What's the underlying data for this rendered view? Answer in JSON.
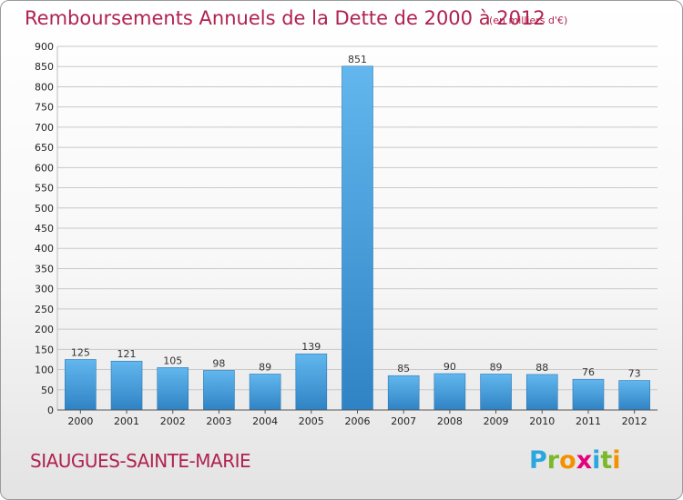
{
  "title": "Remboursements Annuels de la Dette de 2000 à 2012",
  "unit": "(en milliers d'€)",
  "location": "SIAUGUES-SAINTE-MARIE",
  "brand": {
    "letters": [
      "P",
      "r",
      "o",
      "x",
      "i",
      "t",
      "i"
    ],
    "colors": [
      "#2aa7df",
      "#7ab929",
      "#f39200",
      "#e5007e",
      "#2aa7df",
      "#7ab929",
      "#f39200"
    ]
  },
  "chart_data": {
    "type": "bar",
    "categories": [
      "2000",
      "2001",
      "2002",
      "2003",
      "2004",
      "2005",
      "2006",
      "2007",
      "2008",
      "2009",
      "2010",
      "2011",
      "2012"
    ],
    "values": [
      125,
      121,
      105,
      98,
      89,
      139,
      851,
      85,
      90,
      89,
      88,
      76,
      73
    ],
    "ylim": [
      0,
      900
    ],
    "yticks": [
      0,
      50,
      100,
      150,
      200,
      250,
      300,
      350,
      400,
      450,
      500,
      550,
      600,
      650,
      700,
      750,
      800,
      850,
      900
    ],
    "grid": true,
    "colors": {
      "bar_top": "#63b7ee",
      "bar_bottom": "#2f83c4",
      "grid": "#c8c8c8"
    }
  }
}
